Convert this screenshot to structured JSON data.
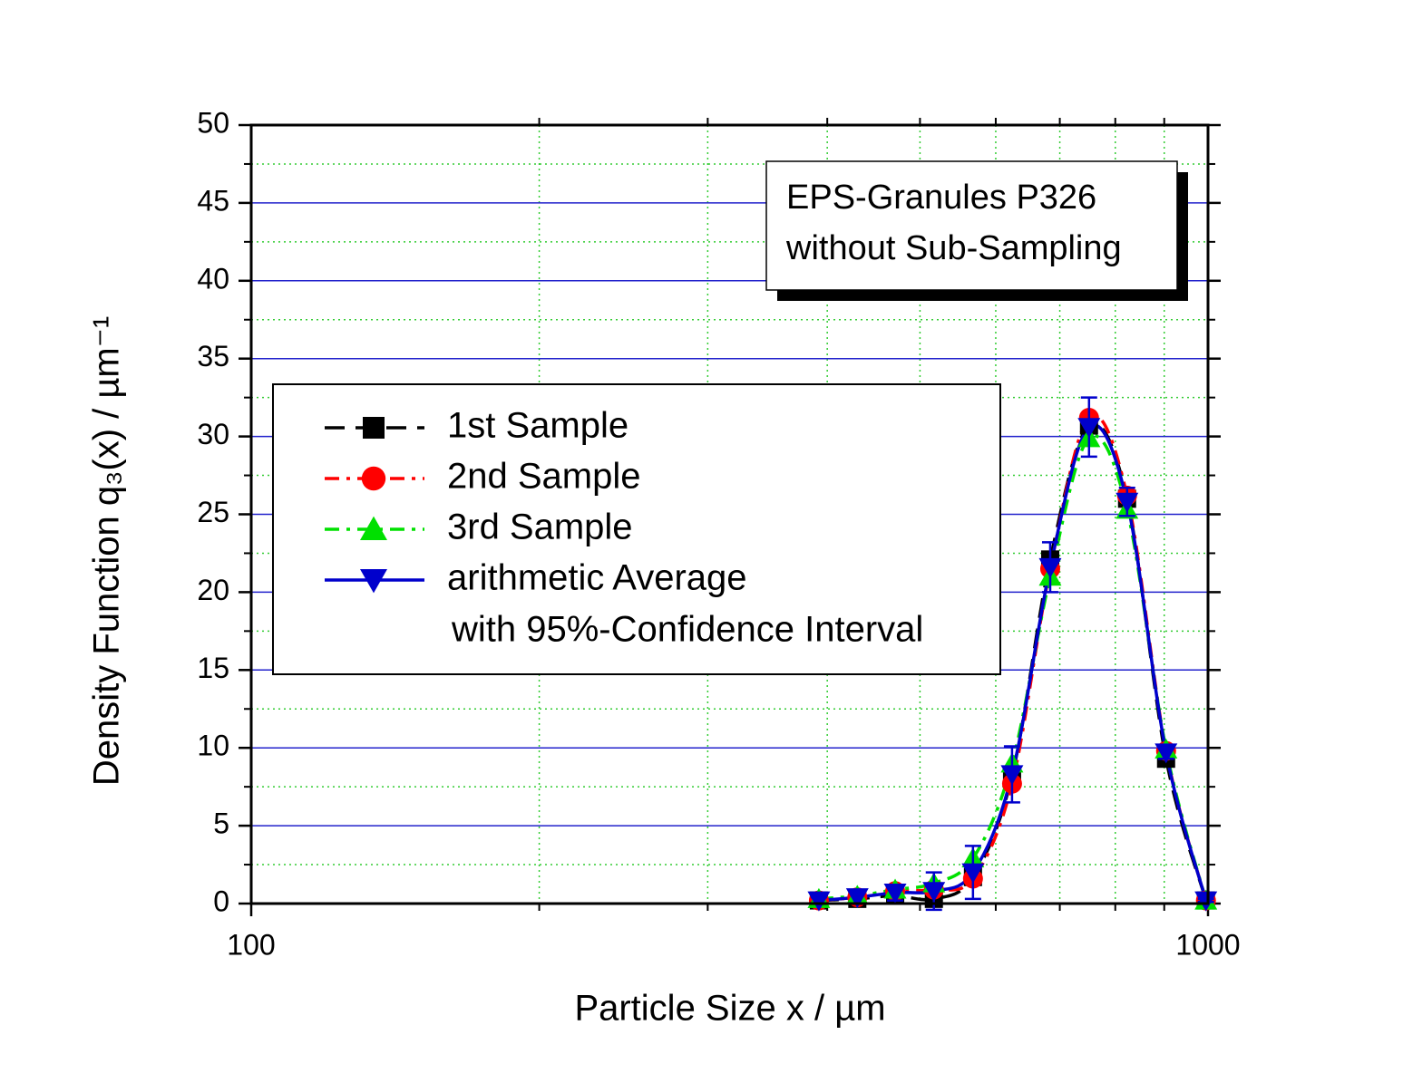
{
  "chart_data": {
    "type": "line",
    "xlabel": "Particle Size x / µm",
    "ylabel": "Density Function q₃(x) / µm⁻¹",
    "x": [
      392,
      430,
      471,
      517,
      568,
      624,
      684,
      751,
      823,
      904,
      995
    ],
    "series": [
      {
        "name": "1st Sample",
        "color": "#000000",
        "marker": "square",
        "dash": "dash",
        "values": [
          0.2,
          0.3,
          0.5,
          0.3,
          1.7,
          8.2,
          22.1,
          30.7,
          26.0,
          9.3,
          0.2
        ]
      },
      {
        "name": "2nd Sample",
        "color": "#ff0000",
        "marker": "circle",
        "dash": "dash-dot",
        "values": [
          0.2,
          0.4,
          0.8,
          0.9,
          1.6,
          7.7,
          21.5,
          31.2,
          26.2,
          9.8,
          0.2
        ]
      },
      {
        "name": "3rd Sample",
        "color": "#00e000",
        "marker": "triangle-up",
        "dash": "dash-dot",
        "values": [
          0.3,
          0.5,
          0.9,
          1.3,
          2.9,
          9.0,
          21.0,
          29.9,
          25.3,
          9.9,
          0.2
        ]
      },
      {
        "name": "arithmetic Average",
        "color": "#0000cc",
        "marker": "triangle-down",
        "dash": "solid",
        "values": [
          0.2,
          0.4,
          0.7,
          0.8,
          2.0,
          8.3,
          21.6,
          30.6,
          25.8,
          9.7,
          0.2
        ],
        "errors": [
          0.2,
          0.4,
          0.5,
          1.2,
          1.7,
          1.8,
          1.6,
          1.9,
          0.9,
          0.4,
          0.1
        ]
      }
    ],
    "legend_note": "with 95%-Confidence Interval",
    "annotation": [
      "EPS-Granules P326",
      "without Sub-Sampling"
    ],
    "xscale": "log",
    "xlim": [
      100,
      1000
    ],
    "xticks": [
      100,
      1000
    ],
    "xminor_ticks": [
      200,
      300,
      400,
      500,
      600,
      700,
      800,
      900
    ],
    "ylim": [
      0,
      50
    ],
    "yticks": [
      0,
      5,
      10,
      15,
      20,
      25,
      30,
      35,
      40,
      45,
      50
    ],
    "yminor_ticks": [
      2.5,
      7.5,
      12.5,
      17.5,
      22.5,
      27.5,
      32.5,
      37.5,
      42.5,
      47.5
    ],
    "grid": true
  }
}
